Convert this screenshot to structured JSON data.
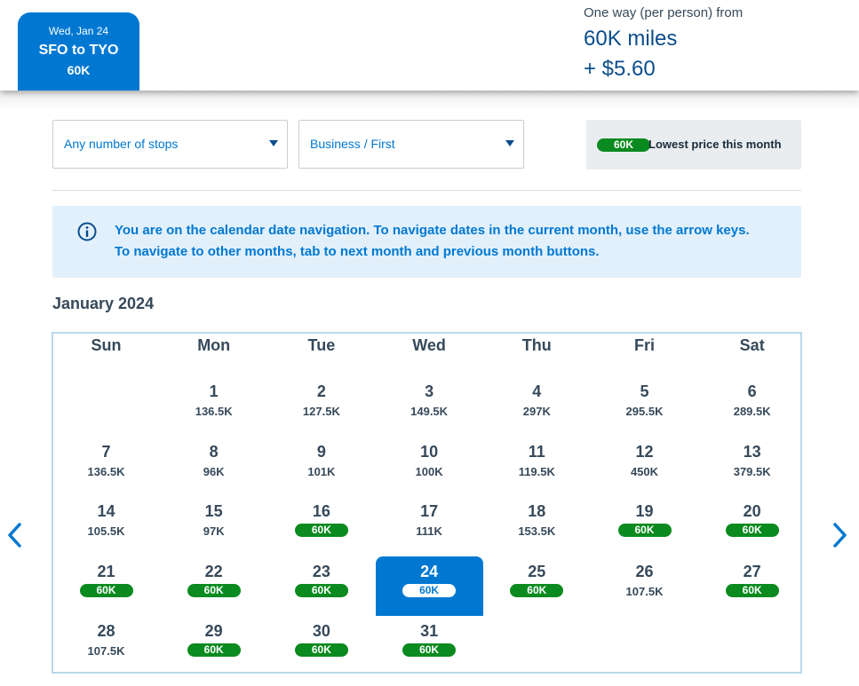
{
  "header": {
    "tab": {
      "date": "Wed, Jan 24",
      "route": "SFO to TYO",
      "price": "60K"
    },
    "fare": {
      "label": "One way (per person) from",
      "miles": "60K miles",
      "cash": "+ $5.60"
    }
  },
  "filters": {
    "stops": {
      "value": "Any number of stops"
    },
    "cabin": {
      "value": "Business / First"
    },
    "legend": {
      "pill": "60K",
      "text": "Lowest price this month"
    }
  },
  "info": {
    "icon": "info-circle-icon",
    "text": "You are on the calendar date navigation. To navigate dates in the current month, use the arrow keys. To navigate to other months, tab to next month and previous month buttons."
  },
  "calendar": {
    "month": "January 2024",
    "weekdays": [
      "Sun",
      "Mon",
      "Tue",
      "Wed",
      "Thu",
      "Fri",
      "Sat"
    ],
    "days": [
      {
        "day": "1",
        "price": "136.5K",
        "lowest": false
      },
      {
        "day": "2",
        "price": "127.5K",
        "lowest": false
      },
      {
        "day": "3",
        "price": "149.5K",
        "lowest": false
      },
      {
        "day": "4",
        "price": "297K",
        "lowest": false
      },
      {
        "day": "5",
        "price": "295.5K",
        "lowest": false
      },
      {
        "day": "6",
        "price": "289.5K",
        "lowest": false
      },
      {
        "day": "7",
        "price": "136.5K",
        "lowest": false
      },
      {
        "day": "8",
        "price": "96K",
        "lowest": false
      },
      {
        "day": "9",
        "price": "101K",
        "lowest": false
      },
      {
        "day": "10",
        "price": "100K",
        "lowest": false
      },
      {
        "day": "11",
        "price": "119.5K",
        "lowest": false
      },
      {
        "day": "12",
        "price": "450K",
        "lowest": false
      },
      {
        "day": "13",
        "price": "379.5K",
        "lowest": false
      },
      {
        "day": "14",
        "price": "105.5K",
        "lowest": false
      },
      {
        "day": "15",
        "price": "97K",
        "lowest": false
      },
      {
        "day": "16",
        "price": "60K",
        "lowest": true
      },
      {
        "day": "17",
        "price": "111K",
        "lowest": false
      },
      {
        "day": "18",
        "price": "153.5K",
        "lowest": false
      },
      {
        "day": "19",
        "price": "60K",
        "lowest": true
      },
      {
        "day": "20",
        "price": "60K",
        "lowest": true
      },
      {
        "day": "21",
        "price": "60K",
        "lowest": true
      },
      {
        "day": "22",
        "price": "60K",
        "lowest": true
      },
      {
        "day": "23",
        "price": "60K",
        "lowest": true
      },
      {
        "day": "24",
        "price": "60K",
        "lowest": true,
        "selected": true
      },
      {
        "day": "25",
        "price": "60K",
        "lowest": true
      },
      {
        "day": "26",
        "price": "107.5K",
        "lowest": false
      },
      {
        "day": "27",
        "price": "60K",
        "lowest": true
      },
      {
        "day": "28",
        "price": "107.5K",
        "lowest": false
      },
      {
        "day": "29",
        "price": "60K",
        "lowest": true
      },
      {
        "day": "30",
        "price": "60K",
        "lowest": true
      },
      {
        "day": "31",
        "price": "60K",
        "lowest": true
      }
    ],
    "first_weekday_index": 1,
    "nav": {
      "prev_icon": "chevron-left-icon",
      "next_icon": "chevron-right-icon"
    }
  },
  "colors": {
    "brand_blue": "#0078d2",
    "lowest_green": "#0a8a1f",
    "info_bg": "#e2f0fb"
  }
}
